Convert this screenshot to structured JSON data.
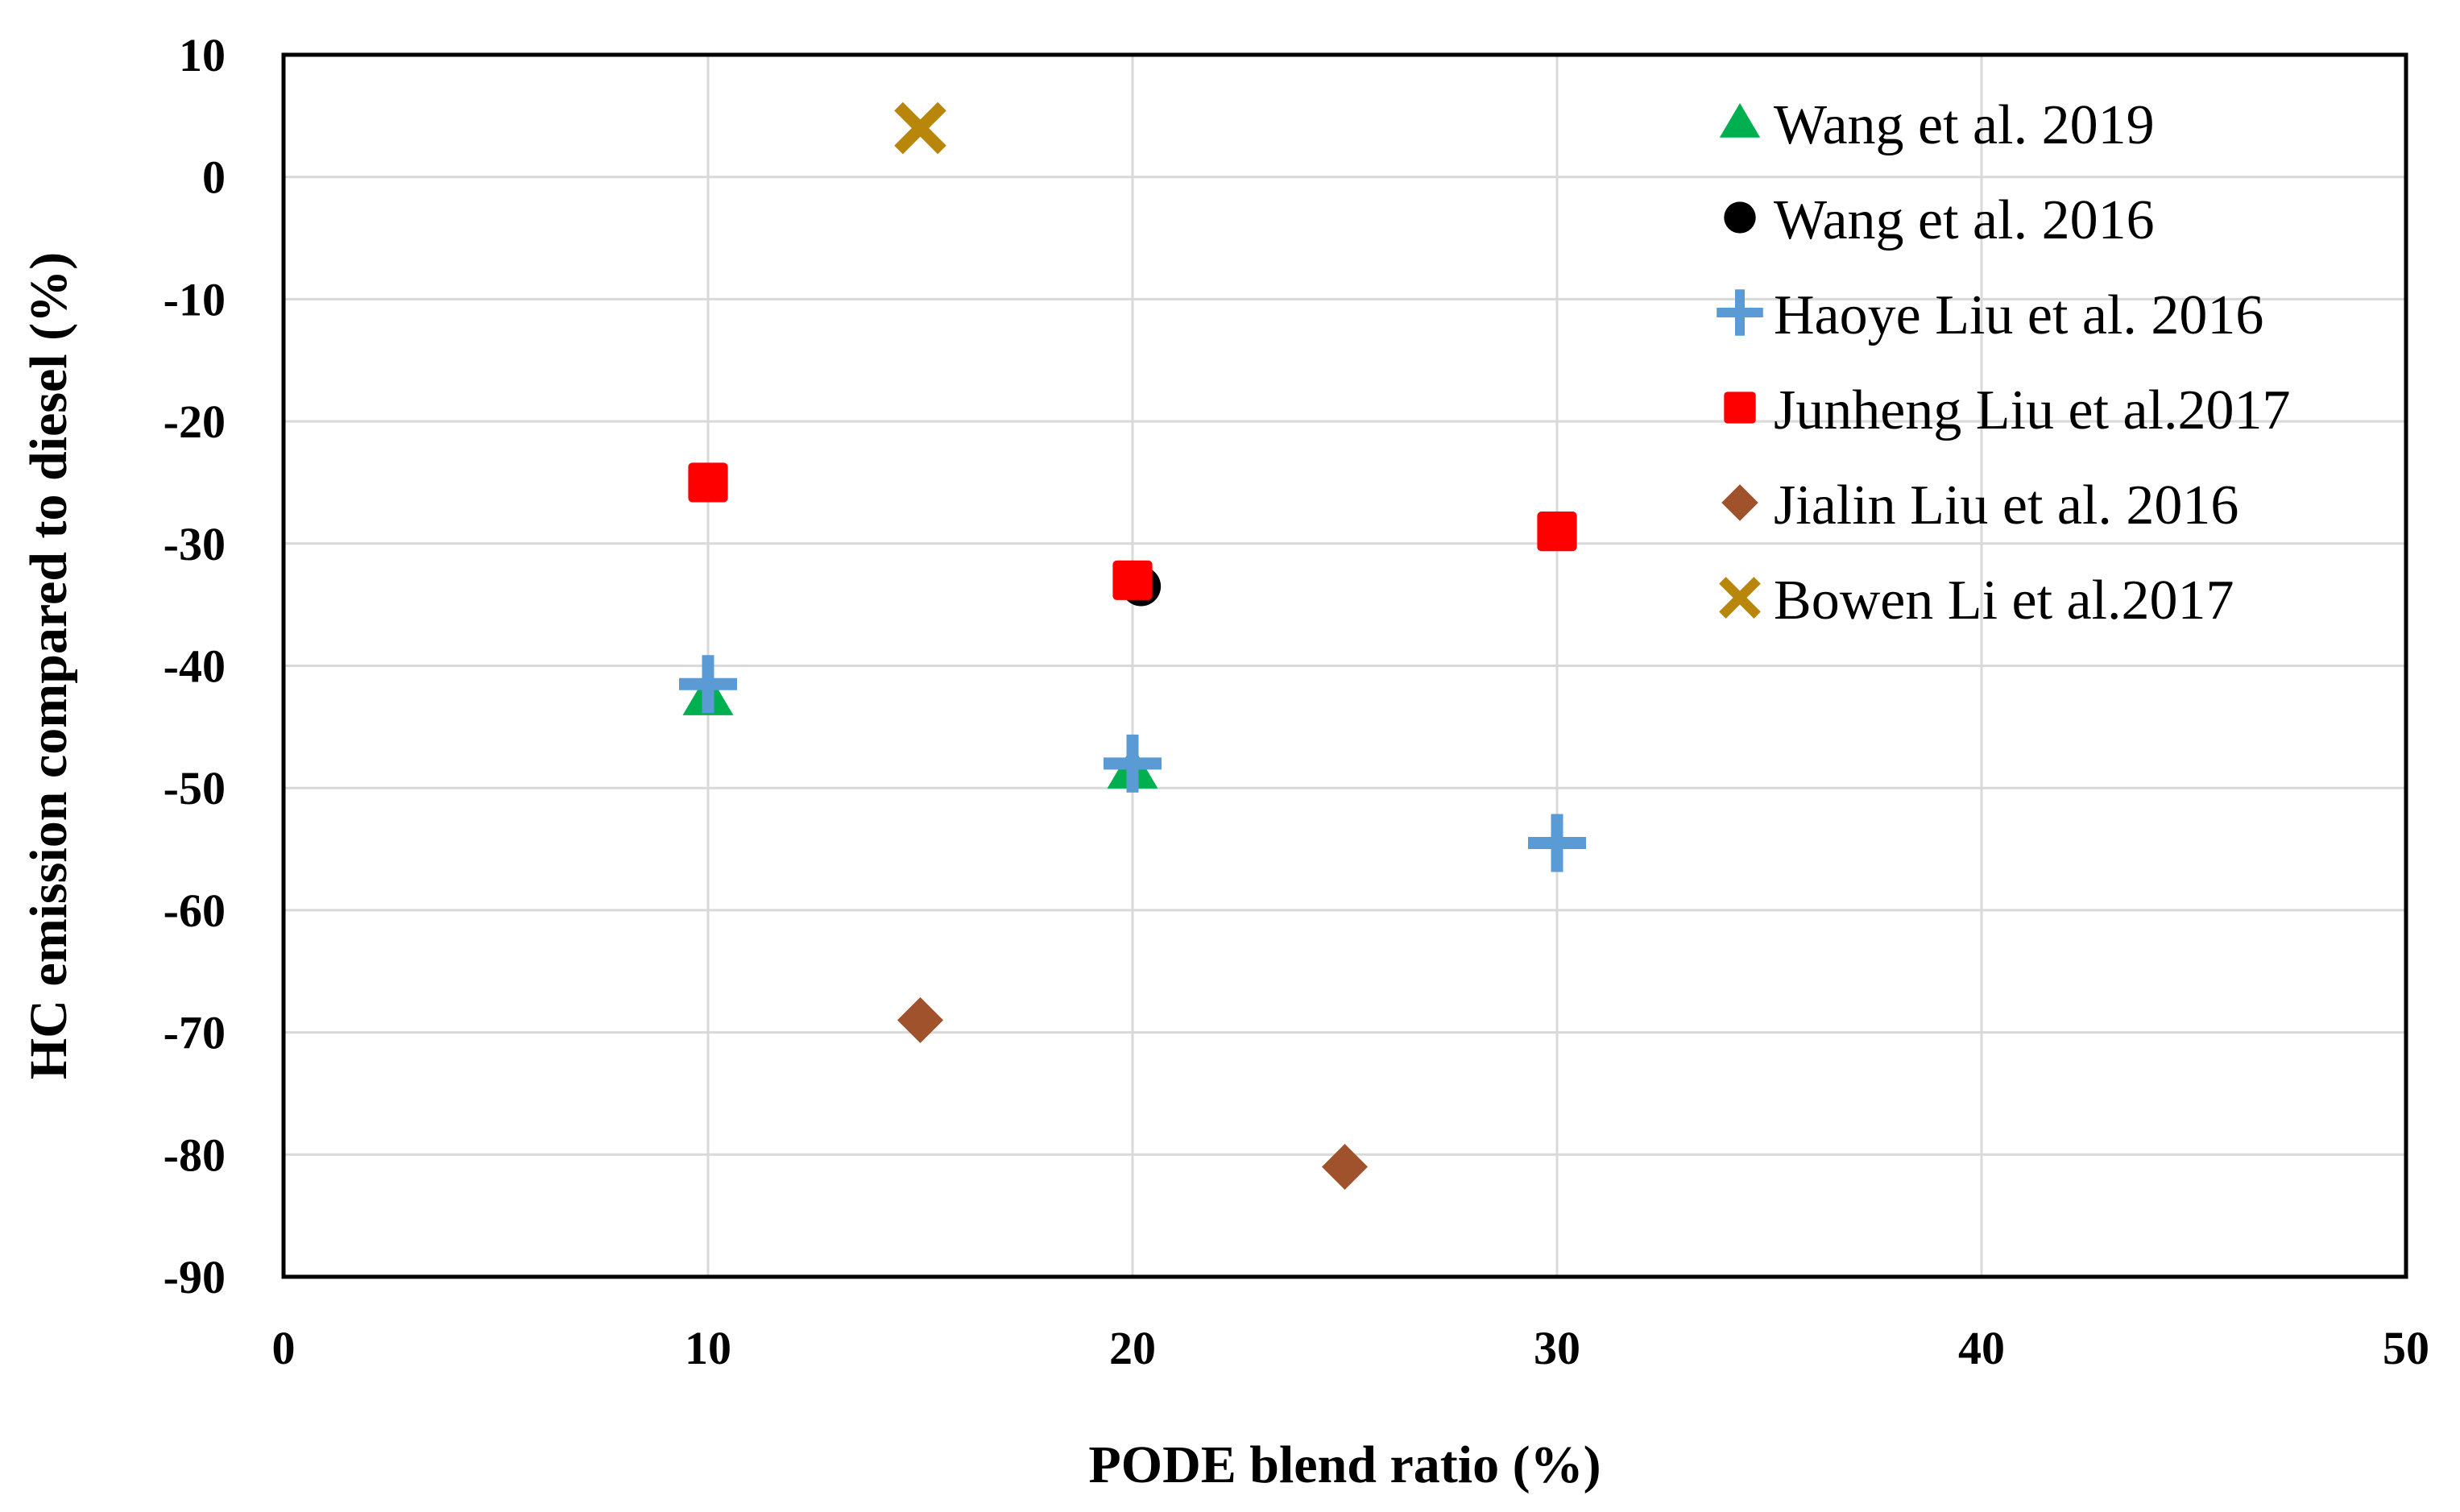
{
  "chart_data": {
    "type": "scatter",
    "title": "",
    "xlabel": "PODE blend ratio (%)",
    "ylabel": "HC emission compared to diesel (%)",
    "xlim": [
      0,
      50
    ],
    "ylim": [
      -90,
      10
    ],
    "xticks": [
      0,
      10,
      20,
      30,
      40,
      50
    ],
    "yticks": [
      10,
      0,
      -10,
      -20,
      -30,
      -40,
      -50,
      -60,
      -70,
      -80,
      -90
    ],
    "grid": true,
    "legend_position": "top-right",
    "series": [
      {
        "name": "Wang et al. 2019",
        "marker": "triangle",
        "color": "#00b050",
        "points": [
          [
            10,
            -42.5
          ],
          [
            20,
            -48.5
          ]
        ]
      },
      {
        "name": "Wang et al. 2016",
        "marker": "circle",
        "color": "#000000",
        "points": [
          [
            20.2,
            -33.5
          ]
        ]
      },
      {
        "name": "Haoye Liu et al. 2016",
        "marker": "plus",
        "color": "#5b9bd5",
        "points": [
          [
            10,
            -41.5
          ],
          [
            20,
            -48
          ],
          [
            30,
            -54.5
          ]
        ]
      },
      {
        "name": "Junheng Liu et al.2017",
        "marker": "square",
        "color": "#ff0000",
        "points": [
          [
            10,
            -25
          ],
          [
            20,
            -33
          ],
          [
            30,
            -29
          ]
        ]
      },
      {
        "name": "Jialin Liu et al. 2016",
        "marker": "diamond",
        "color": "#a0522d",
        "points": [
          [
            15,
            -69
          ],
          [
            25,
            -81
          ]
        ]
      },
      {
        "name": "Bowen Li et al.2017",
        "marker": "x",
        "color": "#b8860b",
        "points": [
          [
            15,
            4
          ]
        ]
      }
    ]
  }
}
